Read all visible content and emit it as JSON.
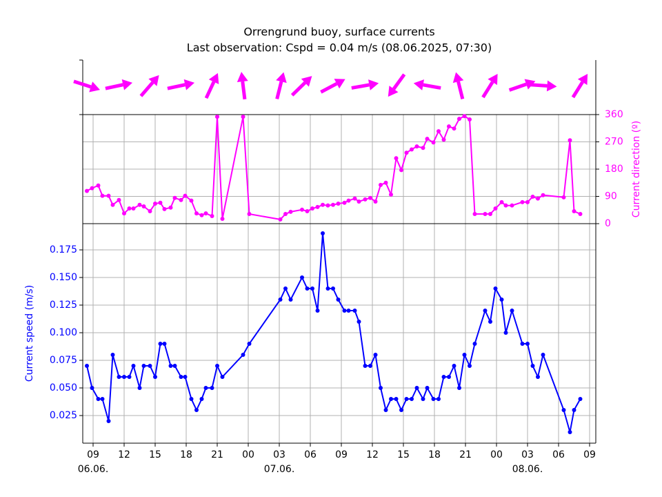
{
  "chart_data": {
    "type": "line",
    "title": "Orrengrund buoy, surface currents",
    "subtitle": "Last observation: Cspd = 0.04 m/s (08.06.2025, 07:30)",
    "ylabel": "Current speed (m/s)",
    "y2label": "Current direction (º)",
    "x": [
      8.4,
      8.9,
      9.5,
      9.9,
      10.5,
      10.9,
      11.5,
      12,
      12.5,
      12.9,
      13.5,
      13.9,
      14.5,
      15,
      15.5,
      15.9,
      16.5,
      16.9,
      17.5,
      17.9,
      18.5,
      19,
      19.5,
      19.9,
      20.5,
      21,
      21.5,
      23.5,
      24.1,
      27.1,
      27.6,
      28.1,
      29.2,
      29.7,
      30.2,
      30.7,
      31.2,
      31.7,
      32.2,
      32.7,
      33.3,
      33.7,
      34.3,
      34.7,
      35.3,
      35.8,
      36.3,
      36.8,
      37.3,
      37.8,
      38.3,
      38.8,
      39.3,
      39.8,
      40.3,
      40.9,
      41.3,
      41.9,
      42.4,
      42.9,
      43.4,
      43.9,
      44.4,
      44.9,
      45.4,
      45.9,
      46.9,
      47.4,
      47.9,
      48.5,
      48.9,
      49.5,
      50.5,
      51,
      51.5,
      52,
      52.5,
      54.5,
      55.1,
      55.5,
      56.1
    ],
    "xlim": [
      8,
      57.6
    ],
    "xticks": [
      {
        "value": 9,
        "label": "09"
      },
      12,
      15,
      18,
      21,
      {
        "value": 24,
        "label": "00"
      },
      {
        "value": 27,
        "label": "03"
      },
      {
        "value": 30,
        "label": "06"
      },
      {
        "value": 33,
        "label": "09"
      },
      {
        "value": 36,
        "label": "12"
      },
      {
        "value": 39,
        "label": "15"
      },
      {
        "value": 42,
        "label": "18"
      },
      {
        "value": 45,
        "label": "21"
      },
      {
        "value": 48,
        "label": "00"
      },
      {
        "value": 51,
        "label": "03"
      },
      {
        "value": 54,
        "label": "06"
      },
      {
        "value": 57,
        "label": "09"
      }
    ],
    "date_labels": [
      {
        "value": 9,
        "label": "06.06."
      },
      {
        "value": 27,
        "label": "07.06."
      },
      {
        "value": 51,
        "label": "08.06."
      }
    ],
    "ylim": [
      0,
      0.19875
    ],
    "yticks": [
      0.025,
      {
        "value": 0.05,
        "label": "0.050"
      },
      0.075,
      {
        "value": 0.1,
        "label": "0.100"
      },
      0.125,
      {
        "value": 0.15,
        "label": "0.150"
      },
      0.175
    ],
    "y2lim": [
      0,
      360
    ],
    "y2ticks": [
      0,
      90,
      180,
      270,
      360
    ],
    "grid": true,
    "series": [
      {
        "name": "Current speed",
        "color": "#0000ff",
        "axis": "y",
        "values": [
          0.07,
          0.05,
          0.04,
          0.04,
          0.02,
          0.08,
          0.06,
          0.06,
          0.06,
          0.07,
          0.05,
          0.07,
          0.07,
          0.06,
          0.09,
          0.09,
          0.07,
          0.07,
          0.06,
          0.06,
          0.04,
          0.03,
          0.04,
          0.05,
          0.05,
          0.07,
          0.06,
          0.08,
          0.09,
          0.13,
          0.14,
          0.13,
          0.15,
          0.14,
          0.14,
          0.12,
          0.19,
          0.14,
          0.14,
          0.13,
          0.12,
          0.12,
          0.12,
          0.11,
          0.07,
          0.07,
          0.08,
          0.05,
          0.03,
          0.04,
          0.04,
          0.03,
          0.04,
          0.04,
          0.05,
          0.04,
          0.05,
          0.04,
          0.04,
          0.06,
          0.06,
          0.07,
          0.05,
          0.08,
          0.07,
          0.09,
          0.12,
          0.11,
          0.14,
          0.13,
          0.1,
          0.12,
          0.09,
          0.09,
          0.07,
          0.06,
          0.08,
          0.03,
          0.01,
          0.03,
          0.04
        ]
      },
      {
        "name": "Current direction",
        "color": "#ff00ff",
        "axis": "y2",
        "values": [
          108,
          117,
          126,
          92,
          92,
          62,
          78,
          34,
          50,
          50,
          62,
          57,
          41,
          66,
          69,
          48,
          53,
          85,
          78,
          92,
          76,
          34,
          28,
          34,
          25,
          353,
          16,
          353,
          32,
          14,
          32,
          39,
          46,
          41,
          50,
          55,
          62,
          60,
          62,
          66,
          69,
          76,
          83,
          73,
          80,
          85,
          73,
          128,
          135,
          96,
          216,
          177,
          234,
          245,
          255,
          250,
          280,
          268,
          305,
          277,
          321,
          314,
          346,
          355,
          344,
          32,
          32,
          32,
          50,
          71,
          60,
          60,
          71,
          71,
          89,
          83,
          94,
          87,
          275,
          41,
          32
        ]
      }
    ]
  }
}
